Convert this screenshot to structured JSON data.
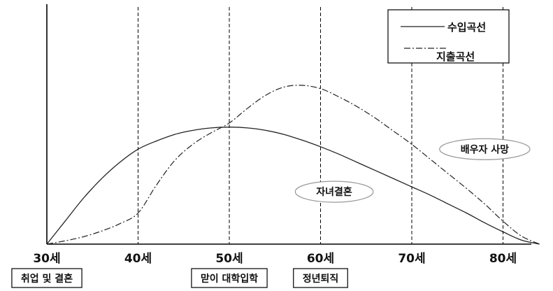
{
  "chart_data": {
    "type": "line",
    "title": "",
    "xlabel": "",
    "ylabel": "",
    "x_ticks": [
      30,
      40,
      50,
      60,
      70,
      80
    ],
    "x_tick_labels": [
      "30세",
      "40세",
      "50세",
      "60세",
      "70세",
      "80세"
    ],
    "xlim": [
      30,
      84
    ],
    "ylim": [
      0,
      100
    ],
    "grid": "dashed vertical lines at 40세, 50세, 60세, 70세, 80세",
    "legend_position": "top-right",
    "series": [
      {
        "name": "수입곡선",
        "style": "solid",
        "color": "#222222",
        "x": [
          30,
          32,
          34,
          36,
          38,
          40,
          42,
          44,
          46,
          48,
          50,
          52,
          54,
          56,
          58,
          60,
          62,
          64,
          66,
          68,
          70,
          72,
          74,
          76,
          78,
          80,
          82,
          84
        ],
        "y": [
          0,
          14,
          28,
          40,
          50,
          58,
          63,
          67,
          69.5,
          71,
          71.5,
          71,
          69.5,
          67,
          63.5,
          59.5,
          55,
          50,
          45,
          40,
          35,
          30,
          24.5,
          19,
          13,
          7.5,
          2.5,
          0
        ]
      },
      {
        "name": "지출곡선",
        "style": "dash-dot",
        "color": "#222222",
        "x": [
          30,
          32,
          34,
          36,
          38,
          40,
          42,
          44,
          46,
          48,
          50,
          52,
          54,
          56,
          58,
          60,
          62,
          64,
          66,
          68,
          70,
          72,
          74,
          76,
          78,
          80,
          82,
          84
        ],
        "y": [
          0,
          2,
          4.5,
          8,
          12.5,
          19,
          36,
          51,
          61,
          68,
          74,
          83,
          91,
          96,
          97,
          95,
          90,
          84,
          77,
          69,
          61,
          52,
          43,
          34,
          24.5,
          14,
          5,
          0
        ]
      }
    ],
    "annotations": [
      {
        "label": "취업 및 결혼",
        "x": 30,
        "shape": "box",
        "placement": "below-axis"
      },
      {
        "label": "맏이 대학입학",
        "x": 50,
        "shape": "box",
        "placement": "below-axis"
      },
      {
        "label": "정년퇴직",
        "x": 60,
        "shape": "box",
        "placement": "below-axis"
      },
      {
        "label": "자녀결혼",
        "x": 61.5,
        "y": 32,
        "shape": "ellipse"
      },
      {
        "label": "배우자 사망",
        "x": 78,
        "y": 58,
        "shape": "ellipse"
      }
    ]
  }
}
